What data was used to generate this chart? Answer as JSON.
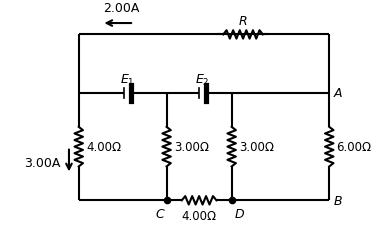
{
  "bg_color": "#ffffff",
  "line_color": "#000000",
  "line_width": 1.5,
  "fig_width": 3.74,
  "fig_height": 2.53,
  "dpi": 100,
  "xlim": [
    0,
    10
  ],
  "ylim": [
    0,
    7
  ],
  "labels": {
    "current_top": "2.00A",
    "current_left": "3.00A",
    "R": "R",
    "A": "A",
    "B": "B",
    "C": "C",
    "D": "D",
    "r1": "4.00Ω",
    "r2": "3.00Ω",
    "r3": "3.00Ω",
    "r4": "6.00Ω",
    "r5": "4.00Ω"
  },
  "xL": 1.5,
  "xM1": 4.2,
  "xM2": 6.2,
  "xR": 9.2,
  "yTop": 6.3,
  "yMid": 4.5,
  "yBot": 1.2,
  "res_amp": 0.13,
  "res_n": 6,
  "font_size": 9.0
}
